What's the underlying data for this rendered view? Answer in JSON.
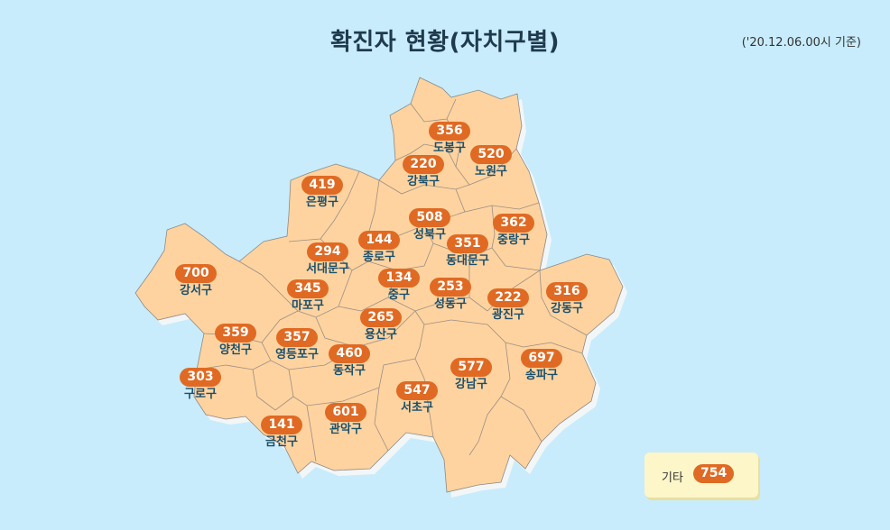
{
  "title": "확진자 현황(자치구별)",
  "basis": "('20.12.06.00시 기준)",
  "colors": {
    "map_fill": "#ffd39f",
    "map_stroke": "#9a8f86",
    "badge": "#e06a23",
    "label": "#1b4f6b",
    "sea": "#c8ecfb"
  },
  "districts": [
    {
      "id": "dobong",
      "name": "도봉구",
      "count": "356"
    },
    {
      "id": "nowon",
      "name": "노원구",
      "count": "520"
    },
    {
      "id": "gangbuk",
      "name": "강북구",
      "count": "220"
    },
    {
      "id": "eunpyeong",
      "name": "은평구",
      "count": "419"
    },
    {
      "id": "seongbuk",
      "name": "성북구",
      "count": "508"
    },
    {
      "id": "jungnang",
      "name": "중랑구",
      "count": "362"
    },
    {
      "id": "jongno",
      "name": "종로구",
      "count": "144"
    },
    {
      "id": "dongdaemun",
      "name": "동대문구",
      "count": "351"
    },
    {
      "id": "seodaemun",
      "name": "서대문구",
      "count": "294"
    },
    {
      "id": "gangseo",
      "name": "강서구",
      "count": "700"
    },
    {
      "id": "junggu",
      "name": "중구",
      "count": "134"
    },
    {
      "id": "mapo",
      "name": "마포구",
      "count": "345"
    },
    {
      "id": "seongdong",
      "name": "성동구",
      "count": "253"
    },
    {
      "id": "gwangjin",
      "name": "광진구",
      "count": "222"
    },
    {
      "id": "gangdong",
      "name": "강동구",
      "count": "316"
    },
    {
      "id": "yongsan",
      "name": "용산구",
      "count": "265"
    },
    {
      "id": "yangcheon",
      "name": "양천구",
      "count": "359"
    },
    {
      "id": "yeongdeungpo",
      "name": "영등포구",
      "count": "357"
    },
    {
      "id": "dongjak",
      "name": "동작구",
      "count": "460"
    },
    {
      "id": "songpa",
      "name": "송파구",
      "count": "697"
    },
    {
      "id": "gangnam",
      "name": "강남구",
      "count": "577"
    },
    {
      "id": "guro",
      "name": "구로구",
      "count": "303"
    },
    {
      "id": "seocho",
      "name": "서초구",
      "count": "547"
    },
    {
      "id": "geumcheon",
      "name": "금천구",
      "count": "141"
    },
    {
      "id": "gwanak",
      "name": "관악구",
      "count": "601"
    }
  ],
  "other": {
    "label": "기타",
    "count": "754"
  }
}
